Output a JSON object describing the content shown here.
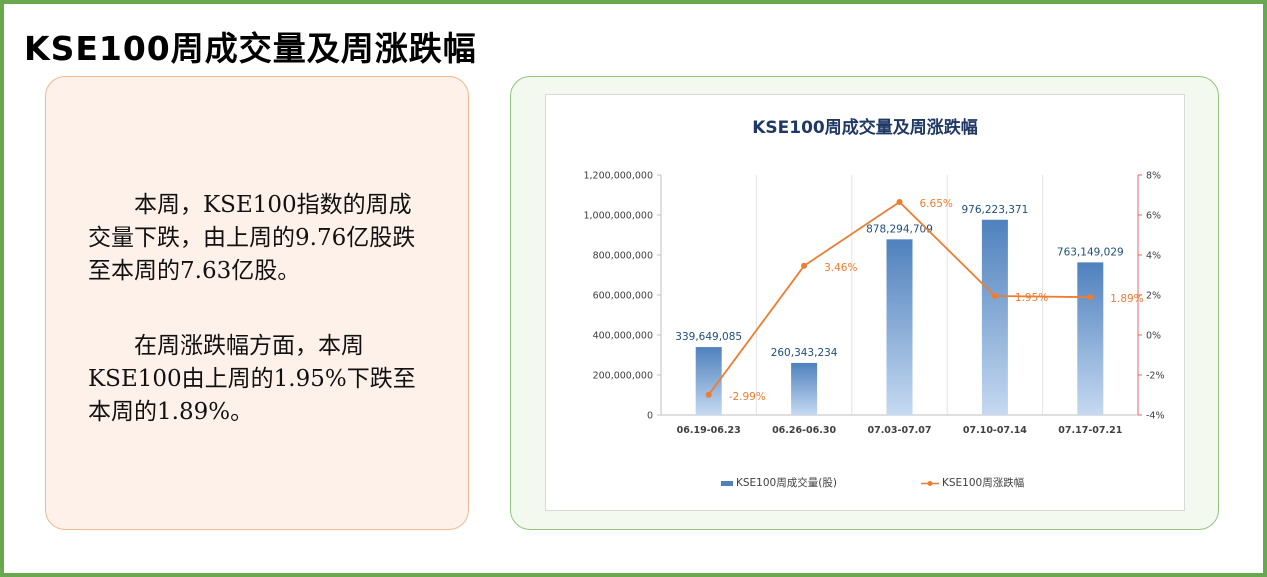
{
  "page": {
    "title": "KSE100周成交量及周涨跌幅"
  },
  "text_panel": {
    "paragraph_1": "本周，KSE100指数的周成交量下跌，由上周的9.76亿股跌至本周的7.63亿股。",
    "paragraph_2": "在周涨跌幅方面，本周KSE100由上周的1.95%下跌至本周的1.89%。"
  },
  "colors": {
    "frame": "#6aa84f",
    "text_card_border": "#f0b98f",
    "text_card_bg": "#fdf1ea",
    "chart_card_border": "#93c47d",
    "bar_top": "#4f81bd",
    "bar_bottom": "#c5d9f1",
    "line": "#ed7d31",
    "chart_title": "#1f3864"
  },
  "chart_data": {
    "type": "bar",
    "title": "KSE100周成交量及周涨跌幅",
    "categories": [
      "06.19-06.23",
      "06.26-06.30",
      "07.03-07.07",
      "07.10-07.14",
      "07.17-07.21"
    ],
    "series": [
      {
        "name": "KSE100周成交量(股)",
        "type": "bar",
        "axis": "left",
        "values": [
          339649085,
          260343234,
          878294709,
          976223371,
          763149029
        ],
        "labels": [
          "339,649,085",
          "260,343,234",
          "878,294,709",
          "976,223,371",
          "763,149,029"
        ]
      },
      {
        "name": "KSE100周涨跌幅",
        "type": "line",
        "axis": "right",
        "values": [
          -2.99,
          3.46,
          6.65,
          1.95,
          1.89
        ],
        "labels": [
          "-2.99%",
          "3.46%",
          "6.65%",
          "1.95%",
          "1.89%"
        ]
      }
    ],
    "y_left": {
      "min": 0,
      "max": 1200000000,
      "ticks": [
        0,
        200000000,
        400000000,
        600000000,
        800000000,
        1000000000,
        1200000000
      ],
      "tick_labels": [
        "0",
        "200,000,000",
        "400,000,000",
        "600,000,000",
        "800,000,000",
        "1,000,000,000",
        "1,200,000,000"
      ]
    },
    "y_right": {
      "min": -4,
      "max": 8,
      "ticks": [
        -4,
        -2,
        0,
        2,
        4,
        6,
        8
      ],
      "tick_labels": [
        "-4%",
        "-2%",
        "0%",
        "2%",
        "4%",
        "6%",
        "8%"
      ]
    },
    "legend_position": "bottom",
    "grid": "vertical"
  }
}
